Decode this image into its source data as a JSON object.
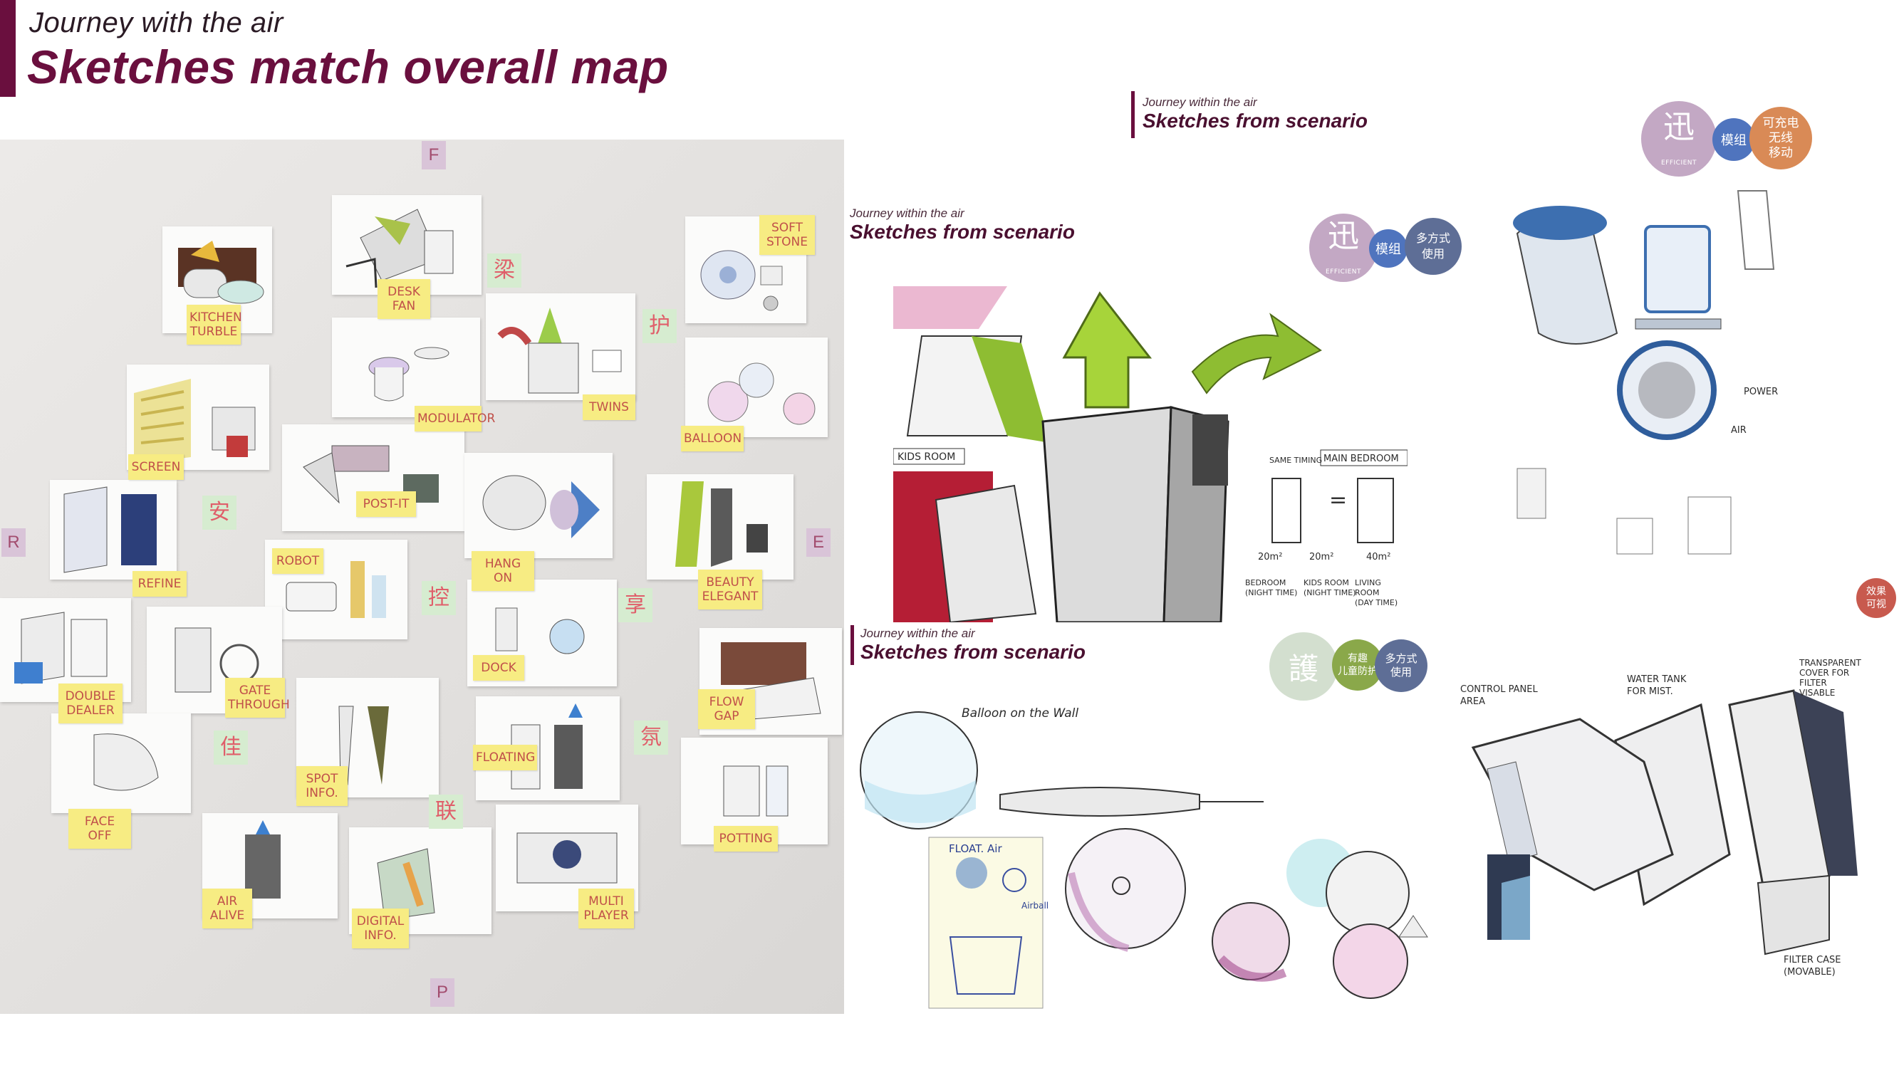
{
  "header": {
    "subtitle": "Journey with the air",
    "title": "Sketches match overall map"
  },
  "wall": {
    "pink_letters": [
      "F",
      "R",
      "E",
      "P"
    ],
    "green_chars": [
      "梁",
      "护",
      "安",
      "控",
      "享",
      "佳",
      "联",
      "氛"
    ],
    "notes": [
      "KITCHEN\nTURBLE",
      "DESK\nFAN",
      "SOFT\nSTONE",
      "MODULATOR",
      "TWINS",
      "BALLOON",
      "SCREEN",
      "POST-IT",
      "REFINE",
      "ROBOT",
      "HANG ON",
      "BEAUTY\nELEGANT",
      "DOUBLE\nDEALER",
      "GATE\nTHROUGH",
      "DOCK",
      "FLOW\nGAP",
      "FLOATING",
      "SPOT\nINFO.",
      "POTTING",
      "FACE OFF",
      "AIR\nALIVE",
      "DIGITAL\nINFO.",
      "MULTI\nPLAYER"
    ]
  },
  "scenario_top": {
    "subtitle": "Journey within the air",
    "title": "Sketches from scenario",
    "badges": {
      "efficient_glyph": "迅",
      "efficient_text": "EFFICIENT",
      "module": "模组",
      "multi_use": "多方式\n使用"
    },
    "room_labels": {
      "kids_room": "KIDS ROOM",
      "main_bedroom": "MAIN BEDROOM",
      "same_timing": "SAME TIMING",
      "sizes": [
        "20m²",
        "20m²",
        "40m²"
      ],
      "rooms": [
        "BEDROOM\n(NIGHT TIME)",
        "KIDS ROOM\n(NIGHT TIME)",
        "LIVING ROOM\n(DAY TIME)"
      ]
    }
  },
  "scenario_right": {
    "subtitle": "Journey within the air",
    "title": "Sketches from scenario",
    "badges": {
      "efficient_glyph": "迅",
      "efficient_text": "EFFICIENT",
      "module": "模组",
      "rechargeable": "可充电\n无线\n移动"
    },
    "labels": {
      "power": "POWER",
      "air": "AIR"
    }
  },
  "scenario_bottom": {
    "subtitle": "Journey within the air",
    "title": "Sketches from scenario",
    "badges": {
      "protect_glyph": "護",
      "fun": "有趣\n儿童防护",
      "multi_use": "多方式\n使用"
    },
    "labels": {
      "balloon": "Balloon on the Wall",
      "float": "FLOAT. Air",
      "airball": "Airball"
    }
  },
  "scenario_bottom_right": {
    "badge_effect": "效果\n可视",
    "labels": {
      "control_panel": "CONTROL PANEL\nAREA",
      "water_tank": "WATER TANK\nFOR MIST.",
      "transparent": "TRANSPARENT\nCOVER FOR\nFILTER\nVISABLE",
      "filter_case": "FILTER CASE\n(MOVABLE)"
    }
  },
  "colors": {
    "brand": "#6a0f3e",
    "sticky": "#f7ec83",
    "efficient": "#c3a8c4",
    "module": "#4f74be",
    "multi_use": "#5e6e96",
    "rechargeable": "#d98a56",
    "fun": "#8aa84a"
  }
}
